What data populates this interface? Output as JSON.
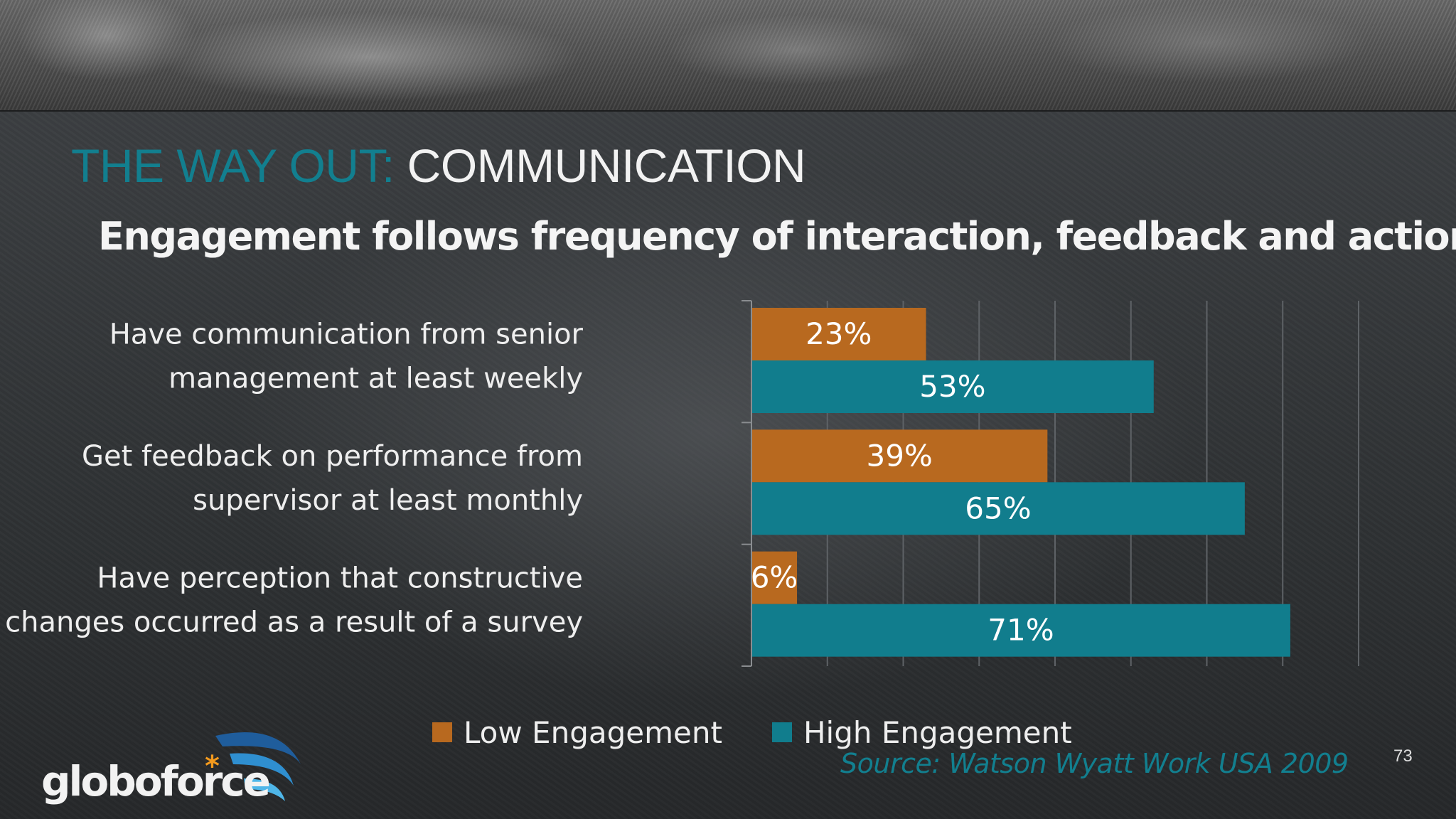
{
  "slide": {
    "heading_accent": "THE WAY OUT:",
    "heading_main": "COMMUNICATION",
    "subtitle": "Engagement follows frequency of interaction, feedback and action",
    "source": "Source:  Watson Wyatt Work USA 2009",
    "page_number": "73",
    "logo_text": "globoforce",
    "logo_mark": "*"
  },
  "colors": {
    "low": "#b8691f",
    "high": "#117d8d",
    "accent": "#127f8f"
  },
  "chart_data": {
    "type": "bar",
    "orientation": "horizontal",
    "categories": [
      [
        "Have communication from senior",
        "management at least weekly"
      ],
      [
        "Get feedback on performance from",
        "supervisor at least monthly"
      ],
      [
        "Have perception that constructive",
        "changes occurred as a result of a survey"
      ]
    ],
    "series": [
      {
        "name": "Low Engagement",
        "values": [
          23,
          39,
          6
        ],
        "labels": [
          "23%",
          "39%",
          "6%"
        ]
      },
      {
        "name": "High Engagement",
        "values": [
          53,
          65,
          71
        ],
        "labels": [
          "53%",
          "65%",
          "71%"
        ]
      }
    ],
    "xlim": [
      0,
      80
    ],
    "grid": true,
    "legend": "bottom"
  }
}
